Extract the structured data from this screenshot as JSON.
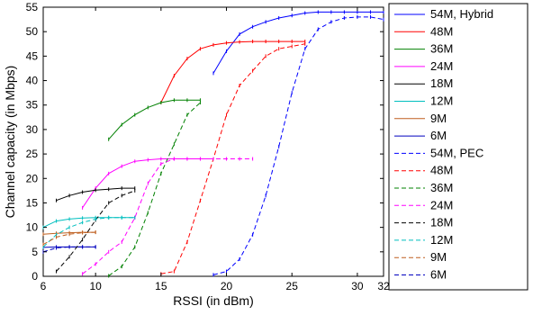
{
  "chart_data": {
    "type": "line",
    "xlabel": "RSSI (in dBm)",
    "ylabel": "Channel capacity (in Mbps)",
    "xlim": [
      6,
      32
    ],
    "ylim": [
      0,
      55
    ],
    "xticks": [
      6,
      10,
      15,
      20,
      25,
      30,
      32
    ],
    "yticks": [
      0,
      5,
      10,
      15,
      20,
      25,
      30,
      35,
      40,
      45,
      50,
      55
    ],
    "grid": false,
    "legend_position": "right",
    "series": [
      {
        "name": "54M, Hybrid",
        "color": "#0000ff",
        "style": "solid",
        "x": [
          19,
          20,
          21,
          22,
          23,
          24,
          25,
          26,
          27,
          28,
          29,
          30,
          31,
          32
        ],
        "y": [
          41.5,
          46,
          49.5,
          51,
          52,
          52.8,
          53.3,
          53.8,
          54,
          54,
          54,
          54,
          54,
          54
        ]
      },
      {
        "name": "48M",
        "color": "#ff0000",
        "style": "solid",
        "x": [
          15,
          16,
          17,
          18,
          19,
          20,
          21,
          22,
          23,
          24,
          25,
          26
        ],
        "y": [
          35.5,
          41,
          44.5,
          46.5,
          47.3,
          47.7,
          47.9,
          48,
          48,
          48,
          48,
          48
        ]
      },
      {
        "name": "36M",
        "color": "#008000",
        "style": "solid",
        "x": [
          11,
          12,
          13,
          14,
          15,
          16,
          17,
          18
        ],
        "y": [
          28,
          31,
          33,
          34.5,
          35.5,
          36,
          36,
          36
        ]
      },
      {
        "name": "24M",
        "color": "#ff00ff",
        "style": "solid",
        "x": [
          9,
          10,
          11,
          12,
          13,
          14,
          15,
          16,
          17,
          18,
          19
        ],
        "y": [
          14,
          18,
          21,
          22.5,
          23.5,
          23.8,
          24,
          24,
          24,
          24,
          24
        ]
      },
      {
        "name": "18M",
        "color": "#000000",
        "style": "solid",
        "x": [
          7,
          8,
          9,
          10,
          11,
          12,
          13
        ],
        "y": [
          15.5,
          16.5,
          17.2,
          17.6,
          17.8,
          18,
          18
        ]
      },
      {
        "name": "12M",
        "color": "#00bfbf",
        "style": "solid",
        "x": [
          6,
          7,
          8,
          9,
          10,
          11,
          12,
          13
        ],
        "y": [
          10,
          11.3,
          11.7,
          11.9,
          12,
          12,
          12,
          12
        ]
      },
      {
        "name": "9M",
        "color": "#bf5f1f",
        "style": "solid",
        "x": [
          6,
          7,
          8,
          9,
          10
        ],
        "y": [
          8.6,
          8.8,
          8.9,
          9,
          9
        ]
      },
      {
        "name": "6M",
        "color": "#0000bf",
        "style": "solid",
        "x": [
          6,
          7,
          8,
          9,
          10
        ],
        "y": [
          5.9,
          6,
          6,
          6,
          6
        ]
      },
      {
        "name": "54M, PEC",
        "color": "#0000ff",
        "style": "dashed",
        "x": [
          19,
          20,
          21,
          22,
          23,
          24,
          25,
          26,
          27,
          28,
          29,
          30,
          31,
          32
        ],
        "y": [
          0.3,
          1,
          3.5,
          8.5,
          16.5,
          26.5,
          37.5,
          46.5,
          50.5,
          52,
          52.8,
          53,
          53,
          52.5
        ]
      },
      {
        "name": "48M",
        "color": "#ff0000",
        "style": "dashed",
        "x": [
          15,
          16,
          17,
          18,
          19,
          20,
          21,
          22,
          23,
          24,
          25,
          26
        ],
        "y": [
          0.5,
          1,
          7,
          15.5,
          24,
          33,
          39,
          42,
          45,
          46.5,
          47,
          47.5
        ]
      },
      {
        "name": "36M",
        "color": "#008000",
        "style": "dashed",
        "x": [
          11,
          12,
          13,
          14,
          15,
          16,
          17,
          18
        ],
        "y": [
          0.1,
          2,
          6,
          13,
          21,
          27,
          33,
          35.5
        ]
      },
      {
        "name": "24M",
        "color": "#ff00ff",
        "style": "dashed",
        "x": [
          9,
          10,
          11,
          12,
          13,
          14,
          15,
          16,
          17,
          18,
          19,
          20,
          21,
          22
        ],
        "y": [
          0.5,
          2.5,
          5,
          7,
          12,
          19,
          23,
          24,
          24,
          24,
          24,
          24,
          24,
          24
        ]
      },
      {
        "name": "18M",
        "color": "#000000",
        "style": "dashed",
        "x": [
          7,
          8,
          9,
          10,
          11,
          12,
          13
        ],
        "y": [
          1,
          4,
          7.5,
          11.5,
          15,
          16.5,
          17.5
        ]
      },
      {
        "name": "12M",
        "color": "#00bfbf",
        "style": "dashed",
        "x": [
          6,
          7,
          8,
          9,
          10,
          11,
          12,
          13
        ],
        "y": [
          6,
          8.5,
          10,
          11,
          11.7,
          12,
          12,
          12
        ]
      },
      {
        "name": "9M",
        "color": "#bf5f1f",
        "style": "dashed",
        "x": [
          6,
          7,
          8,
          9,
          10
        ],
        "y": [
          6.5,
          8,
          8.6,
          8.9,
          9
        ]
      },
      {
        "name": "6M",
        "color": "#0000bf",
        "style": "dashed",
        "x": [
          6,
          7,
          8,
          9,
          10
        ],
        "y": [
          5,
          5.8,
          6,
          6,
          6
        ]
      }
    ]
  }
}
